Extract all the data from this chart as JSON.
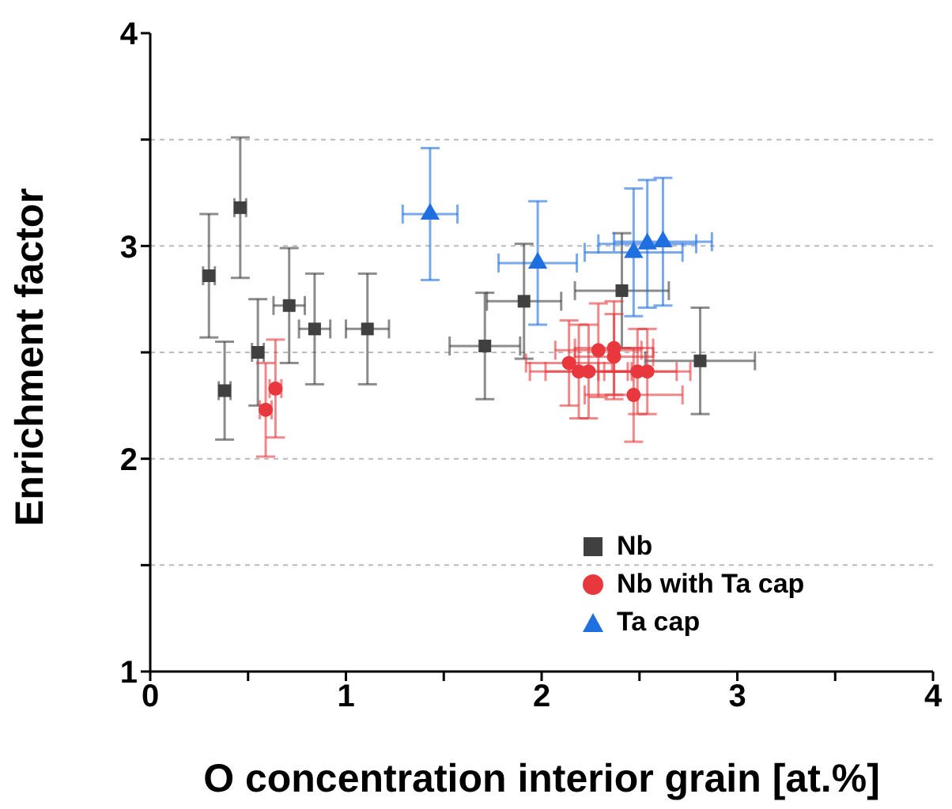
{
  "chart_data": {
    "type": "scatter",
    "xlabel": "O concentration interior grain [at.%]",
    "ylabel": "Enrichment factor",
    "xlim": [
      0,
      4
    ],
    "ylim": [
      1,
      4
    ],
    "xticks": [
      0,
      {
        "value": 0.5,
        "label": null
      },
      1,
      {
        "value": 1.5,
        "label": null
      },
      2,
      {
        "value": 2.5,
        "label": null
      },
      3,
      {
        "value": 3.5,
        "label": null
      },
      4
    ],
    "yticks": [
      1,
      {
        "value": 1.5,
        "label": null
      },
      2,
      {
        "value": 2.5,
        "label": null
      },
      3,
      {
        "value": 3.5,
        "label": null
      },
      4
    ],
    "grid": "y",
    "legend": "bottom right",
    "series": [
      {
        "name": "Nb",
        "color": "#404040",
        "marker": "square",
        "x": [
          0.3,
          0.46,
          0.38,
          0.55,
          0.71,
          0.84,
          1.11,
          1.71,
          1.91,
          2.41,
          2.81
        ],
        "values": [
          2.86,
          3.18,
          2.32,
          2.5,
          2.72,
          2.61,
          2.61,
          2.53,
          2.74,
          2.79,
          2.46
        ],
        "errors": [
          0.29,
          0.33,
          0.23,
          0.25,
          0.27,
          0.26,
          0.26,
          0.25,
          0.27,
          0.27,
          0.25
        ],
        "xerrors": [
          0.03,
          0.03,
          0.03,
          0.03,
          0.08,
          0.08,
          0.11,
          0.18,
          0.19,
          0.24,
          0.28
        ]
      },
      {
        "name": "Nb with Ta cap",
        "color": "#e8383d",
        "marker": "circle",
        "x": [
          0.59,
          0.64,
          2.14,
          2.19,
          2.24,
          2.29,
          2.37,
          2.37,
          2.49,
          2.54,
          2.47
        ],
        "values": [
          2.23,
          2.33,
          2.45,
          2.41,
          2.41,
          2.51,
          2.52,
          2.48,
          2.41,
          2.41,
          2.3
        ],
        "errors": [
          0.22,
          0.23,
          0.2,
          0.22,
          0.22,
          0.22,
          0.22,
          0.2,
          0.2,
          0.2,
          0.22
        ],
        "xerrors": [
          0.03,
          0.03,
          0.22,
          0.25,
          0.22,
          0.22,
          0.2,
          0.2,
          0.2,
          0.22,
          0.25
        ]
      },
      {
        "name": "Ta cap",
        "color": "#1f6fe0",
        "marker": "triangle",
        "x": [
          1.43,
          1.98,
          2.47,
          2.54,
          2.62
        ],
        "values": [
          3.15,
          2.92,
          2.97,
          3.01,
          3.02
        ],
        "errors": [
          0.31,
          0.29,
          0.3,
          0.3,
          0.3
        ],
        "xerrors": [
          0.14,
          0.2,
          0.25,
          0.25,
          0.25
        ]
      }
    ]
  }
}
